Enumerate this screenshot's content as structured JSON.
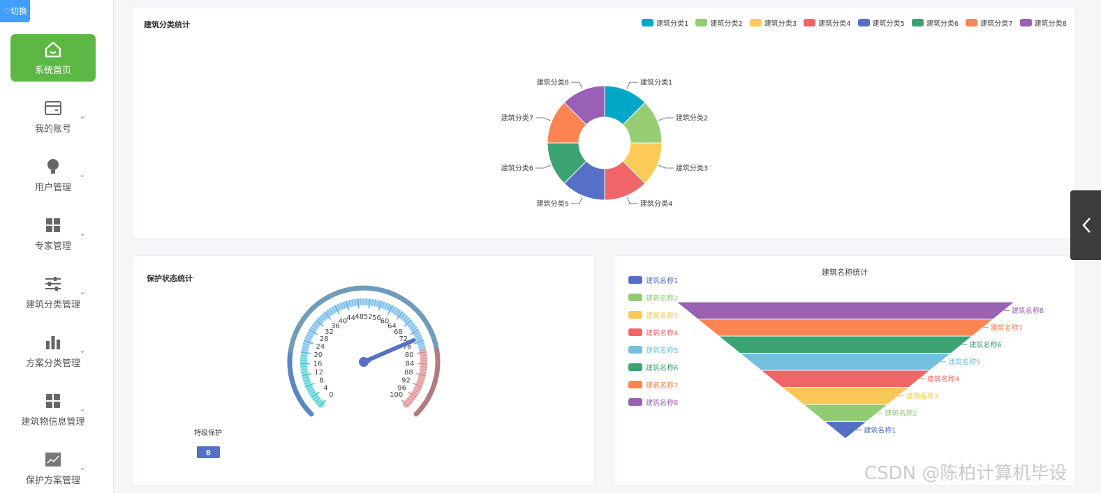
{
  "sidebar": {
    "switch_label": "♡切换",
    "items": [
      {
        "label": "系统首页",
        "icon": "home-icon",
        "active": true
      },
      {
        "label": "我的账号",
        "icon": "wallet-icon"
      },
      {
        "label": "用户管理",
        "icon": "bulb-icon"
      },
      {
        "label": "专家管理",
        "icon": "grid-icon"
      },
      {
        "label": "建筑分类管理",
        "icon": "sliders-icon"
      },
      {
        "label": "方案分类管理",
        "icon": "bar-chart-icon"
      },
      {
        "label": "建筑物信息管理",
        "icon": "grid-icon"
      },
      {
        "label": "保护方案管理",
        "icon": "line-chart-icon"
      }
    ]
  },
  "colors": {
    "accent": "#5cb745",
    "switch": "#409eff",
    "palette": [
      "#00a7c6",
      "#96cc73",
      "#fccb57",
      "#ef6569",
      "#5570c6",
      "#3ba272",
      "#fc8452",
      "#9a60b4"
    ],
    "funnel_palette": [
      "#5470c6",
      "#91cc75",
      "#fac858",
      "#ee6666",
      "#73c0de",
      "#3ba272",
      "#fc8452",
      "#9a60b4"
    ]
  },
  "card1": {
    "title": "建筑分类统计",
    "chart_data": {
      "type": "pie",
      "variant": "donut",
      "title": "建筑分类统计",
      "categories": [
        "建筑分类1",
        "建筑分类2",
        "建筑分类3",
        "建筑分类4",
        "建筑分类5",
        "建筑分类6",
        "建筑分类7",
        "建筑分类8"
      ],
      "values": [
        1,
        1,
        1,
        1,
        1,
        1,
        1,
        1
      ],
      "legend": "top-right"
    }
  },
  "card2": {
    "title": "保护状态统计",
    "chart_data": {
      "type": "gauge",
      "title": "保护状态统计",
      "min": 0,
      "max": 100,
      "ticks": [
        0,
        4,
        8,
        12,
        16,
        20,
        24,
        28,
        32,
        36,
        40,
        44,
        48,
        52,
        56,
        60,
        64,
        68,
        72,
        76,
        80,
        84,
        88,
        92,
        96,
        100
      ],
      "value": 8,
      "value_label": "特级保护"
    }
  },
  "card3": {
    "title": "建筑名称统计",
    "chart_data": {
      "type": "funnel",
      "title": "建筑名称统计",
      "categories": [
        "建筑名称1",
        "建筑名称2",
        "建筑名称3",
        "建筑名称4",
        "建筑名称5",
        "建筑名称6",
        "建筑名称7",
        "建筑名称8"
      ],
      "values": [
        1,
        2,
        3,
        4,
        5,
        6,
        7,
        8
      ],
      "legend": "left"
    }
  },
  "collapse_icon": "chevron-left-icon",
  "watermark": "CSDN @陈柏计算机毕设"
}
